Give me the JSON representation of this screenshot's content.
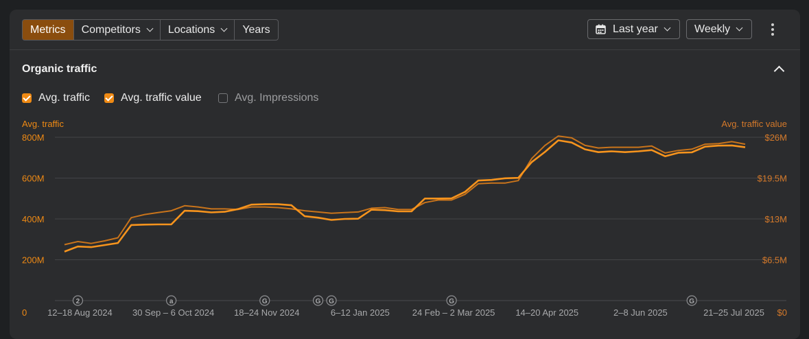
{
  "toolbar": {
    "tabs": [
      "Metrics",
      "Competitors",
      "Locations",
      "Years"
    ],
    "period": "Last year",
    "interval": "Weekly"
  },
  "section": {
    "title": "Organic traffic",
    "checkboxes": [
      {
        "label": "Avg. traffic",
        "checked": true
      },
      {
        "label": "Avg. traffic value",
        "checked": true
      },
      {
        "label": "Avg. Impressions",
        "checked": false
      }
    ]
  },
  "colors": {
    "traffic": "#f7941d",
    "traffic_value": "#c9741b",
    "axis_left": "#ef8a14",
    "axis_right": "#d4792a",
    "grid": "#434447",
    "date_label": "#a8a9ab"
  },
  "chart_data": {
    "type": "line",
    "y_left_label": "Avg. traffic",
    "y_right_label": "Avg. traffic value",
    "y_left_ticks": [
      "0",
      "200M",
      "400M",
      "600M",
      "800M"
    ],
    "y_right_ticks": [
      "$0",
      "$6.5M",
      "$13M",
      "$19.5M",
      "$26M"
    ],
    "ylim_left": [
      0,
      800000000
    ],
    "ylim_right": [
      0,
      26000000
    ],
    "x_labels": [
      "12–18 Aug 2024",
      "30 Sep – 6 Oct 2024",
      "18–24 Nov 2024",
      "6–12 Jan 2025",
      "24 Feb – 2 Mar 2025",
      "14–20 Apr 2025",
      "2–8 Jun 2025",
      "21–25 Jul 2025"
    ],
    "x_label_weeks": [
      1,
      8,
      15,
      22,
      29,
      36,
      43,
      50
    ],
    "annotations": [
      {
        "week": 1,
        "label": "2"
      },
      {
        "week": 8,
        "label": "a"
      },
      {
        "week": 15,
        "label": "G"
      },
      {
        "week": 19,
        "label": "G"
      },
      {
        "week": 20,
        "label": "G"
      },
      {
        "week": 29,
        "label": "G"
      },
      {
        "week": 47,
        "label": "G"
      }
    ],
    "grid": true,
    "series": [
      {
        "name": "Avg. traffic",
        "axis": "left",
        "values": [
          240,
          265,
          262,
          272,
          282,
          370,
          372,
          373,
          373,
          440,
          438,
          432,
          435,
          448,
          470,
          472,
          472,
          467,
          413,
          406,
          395,
          400,
          401,
          445,
          443,
          437,
          437,
          500,
          500,
          501,
          532,
          588,
          591,
          599,
          601,
          678,
          728,
          785,
          774,
          741,
          727,
          731,
          727,
          731,
          737,
          707,
          724,
          726,
          754,
          759,
          760,
          751
        ]
      },
      {
        "name": "Avg. traffic value",
        "axis": "right",
        "values": [
          8.9,
          9.4,
          9.1,
          9.5,
          10.0,
          13.2,
          13.7,
          14.0,
          14.3,
          15.1,
          14.9,
          14.6,
          14.6,
          14.5,
          14.9,
          14.9,
          14.8,
          14.6,
          14.3,
          14.1,
          13.9,
          14.0,
          14.1,
          14.7,
          14.8,
          14.5,
          14.5,
          15.6,
          16.0,
          16.0,
          16.9,
          18.6,
          18.7,
          18.7,
          19.1,
          22.6,
          24.7,
          26.2,
          25.9,
          24.7,
          24.3,
          24.4,
          24.4,
          24.4,
          24.6,
          23.5,
          23.9,
          24.1,
          24.9,
          25.0,
          25.3,
          24.9
        ]
      }
    ]
  }
}
